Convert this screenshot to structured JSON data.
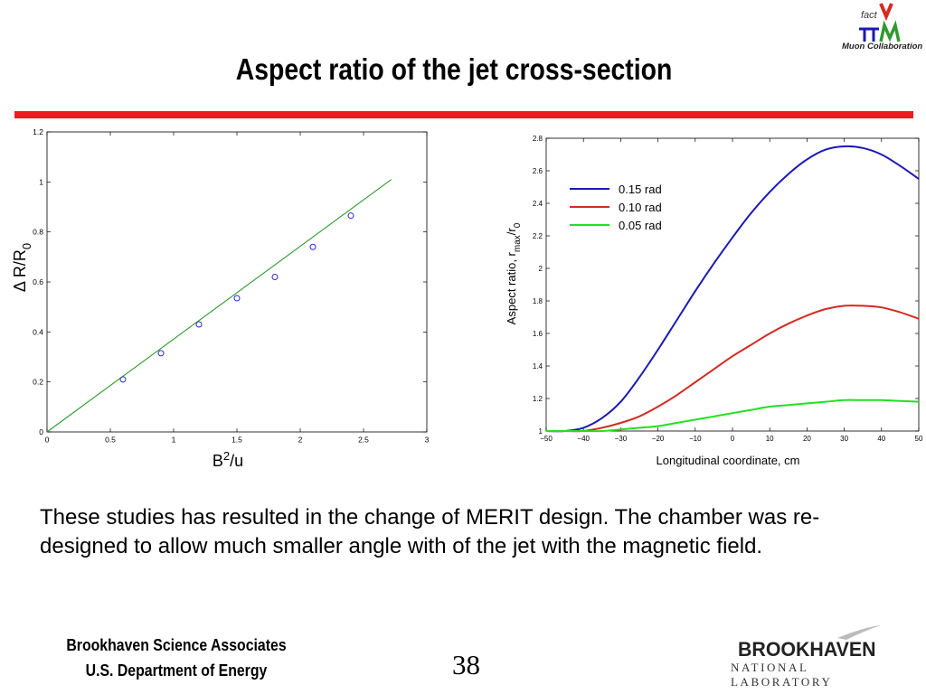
{
  "slide": {
    "title": "Aspect ratio of the jet cross-section",
    "body_text": "These studies has resulted in the change of MERIT design. The chamber was re-designed to allow much smaller angle with of the jet with the magnetic field.",
    "footer_line1": "Brookhaven Science Associates",
    "footer_line2": "U.S. Department of Energy",
    "page_number": "38",
    "logo_top_text": "Muon Collaboration",
    "logo_top_mark": "fact",
    "logo_bottom_name": "BROOKHAVEN",
    "logo_bottom_sub": "NATIONAL LABORATORY",
    "accent_color": "#ee1c1c"
  },
  "chart_data": [
    {
      "type": "scatter",
      "xlabel": "B",
      "xlabel_sup": "2",
      "xlabel_tail": "/u",
      "ylabel": "Δ R/R",
      "ylabel_sub": "0",
      "xlim": [
        0,
        3
      ],
      "ylim": [
        0,
        1.2
      ],
      "xticks": [
        0,
        0.5,
        1,
        1.5,
        2,
        2.5,
        3
      ],
      "xtick_labels": [
        "0",
        "0.5",
        "1",
        "1.5",
        "2",
        "2.5",
        "3"
      ],
      "yticks": [
        0,
        0.2,
        0.4,
        0.6,
        0.8,
        1,
        1.2
      ],
      "ytick_labels": [
        "0",
        "0.2",
        "0.4",
        "0.6",
        "0.8",
        "1",
        "1.2"
      ],
      "grid": false,
      "series": [
        {
          "kind": "points",
          "color": "#2a2ad0",
          "x": [
            0.6,
            0.9,
            1.2,
            1.5,
            1.8,
            2.1,
            2.4
          ],
          "y": [
            0.21,
            0.315,
            0.43,
            0.535,
            0.62,
            0.74,
            0.865
          ]
        },
        {
          "kind": "fit-line",
          "color": "#2f9a2f",
          "x": [
            0,
            2.72
          ],
          "y": [
            0,
            1.01
          ]
        }
      ]
    },
    {
      "type": "line",
      "xlabel": "Longitudinal coordinate,  cm",
      "ylabel": "Aspect ratio,  r",
      "ylabel_sub": "max",
      "ylabel_tail": "/r",
      "ylabel_tail_sub": "0",
      "xlim": [
        -50,
        50
      ],
      "ylim": [
        1,
        2.8
      ],
      "xticks": [
        -50,
        -40,
        -30,
        -20,
        -10,
        0,
        10,
        20,
        30,
        40,
        50
      ],
      "xtick_labels": [
        "−50",
        "−40",
        "−30",
        "−20",
        "−10",
        "0",
        "10",
        "20",
        "30",
        "40",
        "50"
      ],
      "yticks": [
        1,
        1.2,
        1.4,
        1.6,
        1.8,
        2,
        2.2,
        2.4,
        2.6,
        2.8
      ],
      "ytick_labels": [
        "1",
        "1.2",
        "1.4",
        "1.6",
        "1.8",
        "2",
        "2.2",
        "2.4",
        "2.6",
        "2.8"
      ],
      "grid": false,
      "legend": "top-left",
      "x": [
        -50,
        -45,
        -40,
        -35,
        -30,
        -25,
        -20,
        -15,
        -10,
        -5,
        0,
        5,
        10,
        15,
        20,
        25,
        30,
        35,
        40,
        45,
        50
      ],
      "series": [
        {
          "name": "0.15 rad",
          "color": "#1a1ab4",
          "values": [
            1.0,
            1.0,
            1.02,
            1.08,
            1.18,
            1.33,
            1.5,
            1.68,
            1.86,
            2.03,
            2.19,
            2.34,
            2.47,
            2.58,
            2.67,
            2.73,
            2.75,
            2.74,
            2.7,
            2.63,
            2.55
          ]
        },
        {
          "name": "0.10 rad",
          "color": "#d42a22",
          "values": [
            1.0,
            1.0,
            1.0,
            1.02,
            1.05,
            1.09,
            1.15,
            1.22,
            1.3,
            1.38,
            1.46,
            1.53,
            1.6,
            1.66,
            1.71,
            1.75,
            1.77,
            1.77,
            1.76,
            1.73,
            1.69
          ]
        },
        {
          "name": "0.05 rad",
          "color": "#22e022",
          "values": [
            1.0,
            1.0,
            1.0,
            1.0,
            1.01,
            1.02,
            1.03,
            1.05,
            1.07,
            1.09,
            1.11,
            1.13,
            1.15,
            1.16,
            1.17,
            1.18,
            1.19,
            1.19,
            1.19,
            1.185,
            1.18
          ]
        }
      ]
    }
  ]
}
